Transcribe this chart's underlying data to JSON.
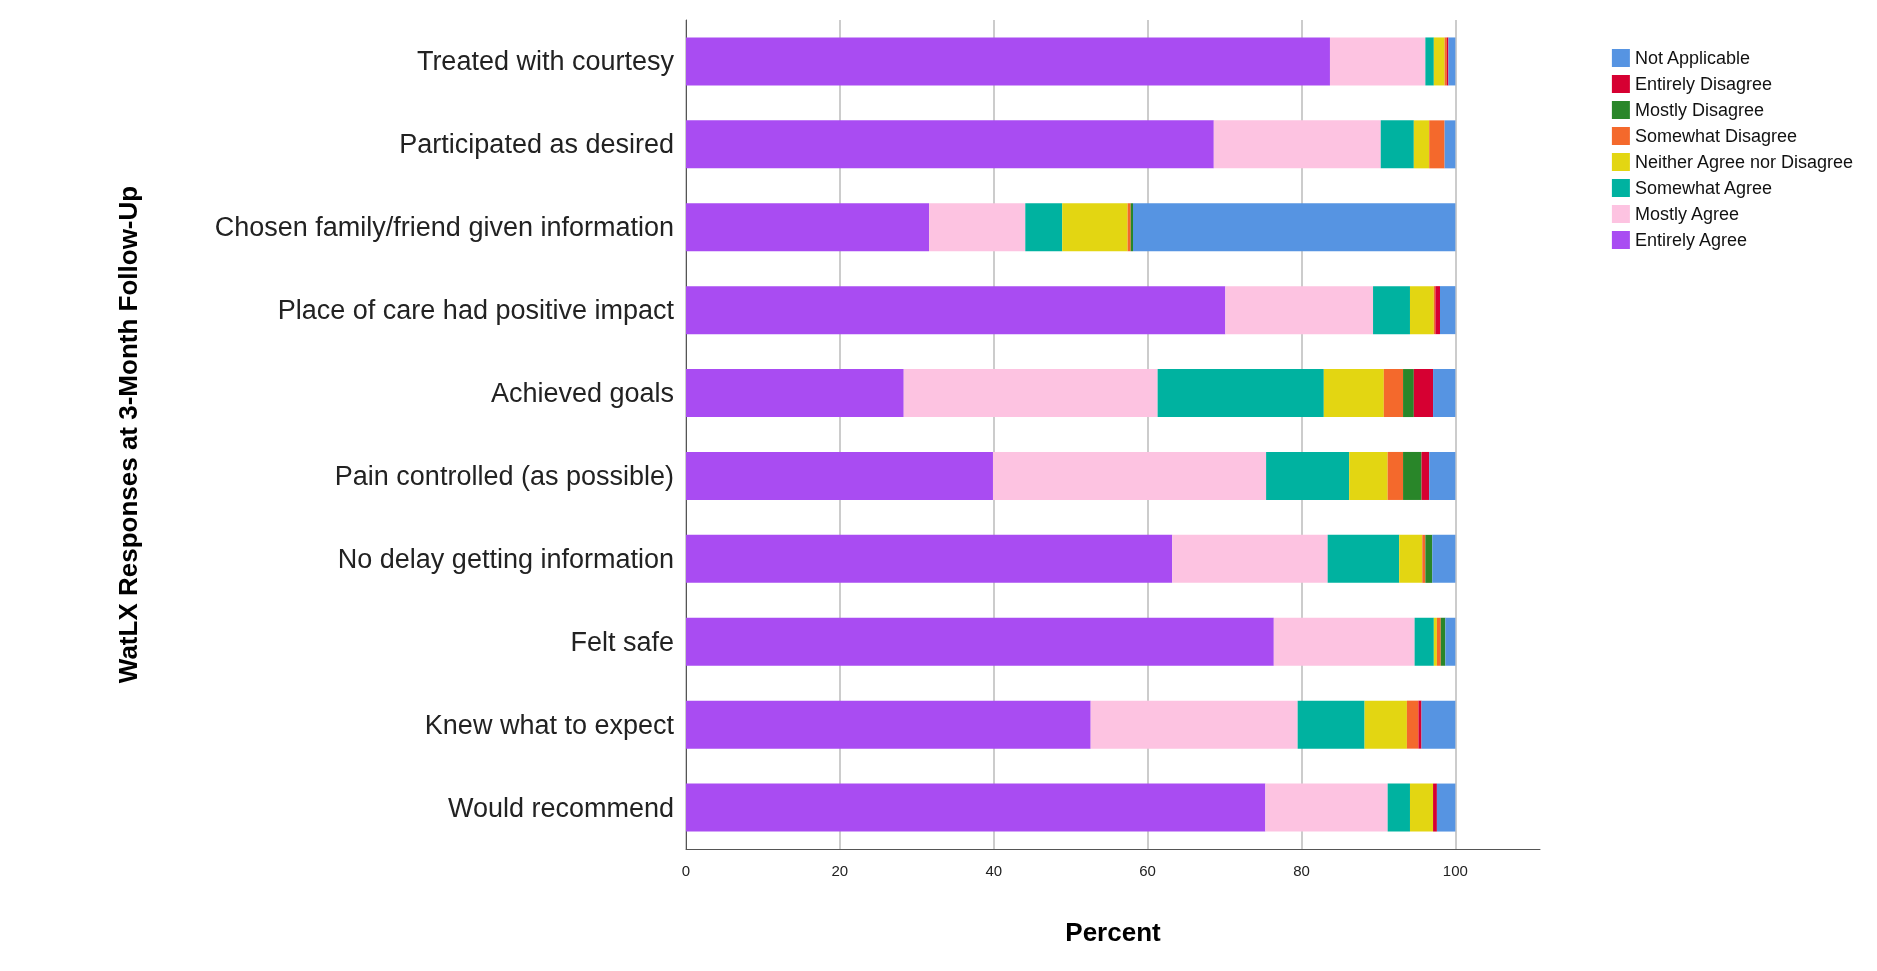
{
  "chart_data": {
    "type": "bar",
    "orientation": "horizontal",
    "stacked": true,
    "xlabel": "Percent",
    "ylabel": "WatLX Responses at 3-Month Follow-Up",
    "categories": [
      "Treated with courtesy",
      "Participated as desired",
      "Chosen family/friend given information",
      "Place of care had positive impact",
      "Achieved goals",
      "Pain controlled (as possible)",
      "No delay getting information",
      "Felt safe",
      "Knew what to expect",
      "Would recommend"
    ],
    "series": [
      {
        "name": "Entirely Agree",
        "color": "#a94cf2",
        "values": [
          83.7,
          68.6,
          31.6,
          70.1,
          28.3,
          39.9,
          63.2,
          76.4,
          52.6,
          75.3
        ]
      },
      {
        "name": "Mostly Agree",
        "color": "#fdc3e1",
        "values": [
          12.4,
          21.7,
          12.5,
          19.2,
          33.0,
          35.5,
          20.2,
          18.3,
          26.9,
          15.9
        ]
      },
      {
        "name": "Somewhat Agree",
        "color": "#00b2a0",
        "values": [
          1.1,
          4.3,
          4.8,
          4.8,
          21.6,
          10.8,
          9.3,
          2.5,
          8.7,
          2.9
        ]
      },
      {
        "name": "Neither Agree nor Disagree",
        "color": "#e3d612",
        "values": [
          1.4,
          2.0,
          8.5,
          3.1,
          7.8,
          5.0,
          3.0,
          0.4,
          5.5,
          3.0
        ]
      },
      {
        "name": "Somewhat Disagree",
        "color": "#f4692c",
        "values": [
          0.3,
          2.0,
          0.4,
          0.2,
          2.5,
          2.0,
          0.4,
          0.5,
          1.5,
          0
        ]
      },
      {
        "name": "Mostly Disagree",
        "color": "#298629",
        "values": [
          0,
          0,
          0.3,
          0,
          1.4,
          2.4,
          0.9,
          0.6,
          0,
          0
        ]
      },
      {
        "name": "Entirely Disagree",
        "color": "#d60032",
        "values": [
          0.2,
          0,
          0,
          0.6,
          2.5,
          1.0,
          0,
          0,
          0.4,
          0.5
        ]
      },
      {
        "name": "Not Applicable",
        "color": "#5694e2",
        "values": [
          0.9,
          1.4,
          41.9,
          2.0,
          2.9,
          3.4,
          3.0,
          1.3,
          4.4,
          2.4
        ]
      }
    ],
    "xlim": [
      0,
      111
    ],
    "xticks": [
      0,
      20,
      40,
      60,
      80,
      100
    ],
    "grid": "x",
    "legend": "top right"
  }
}
